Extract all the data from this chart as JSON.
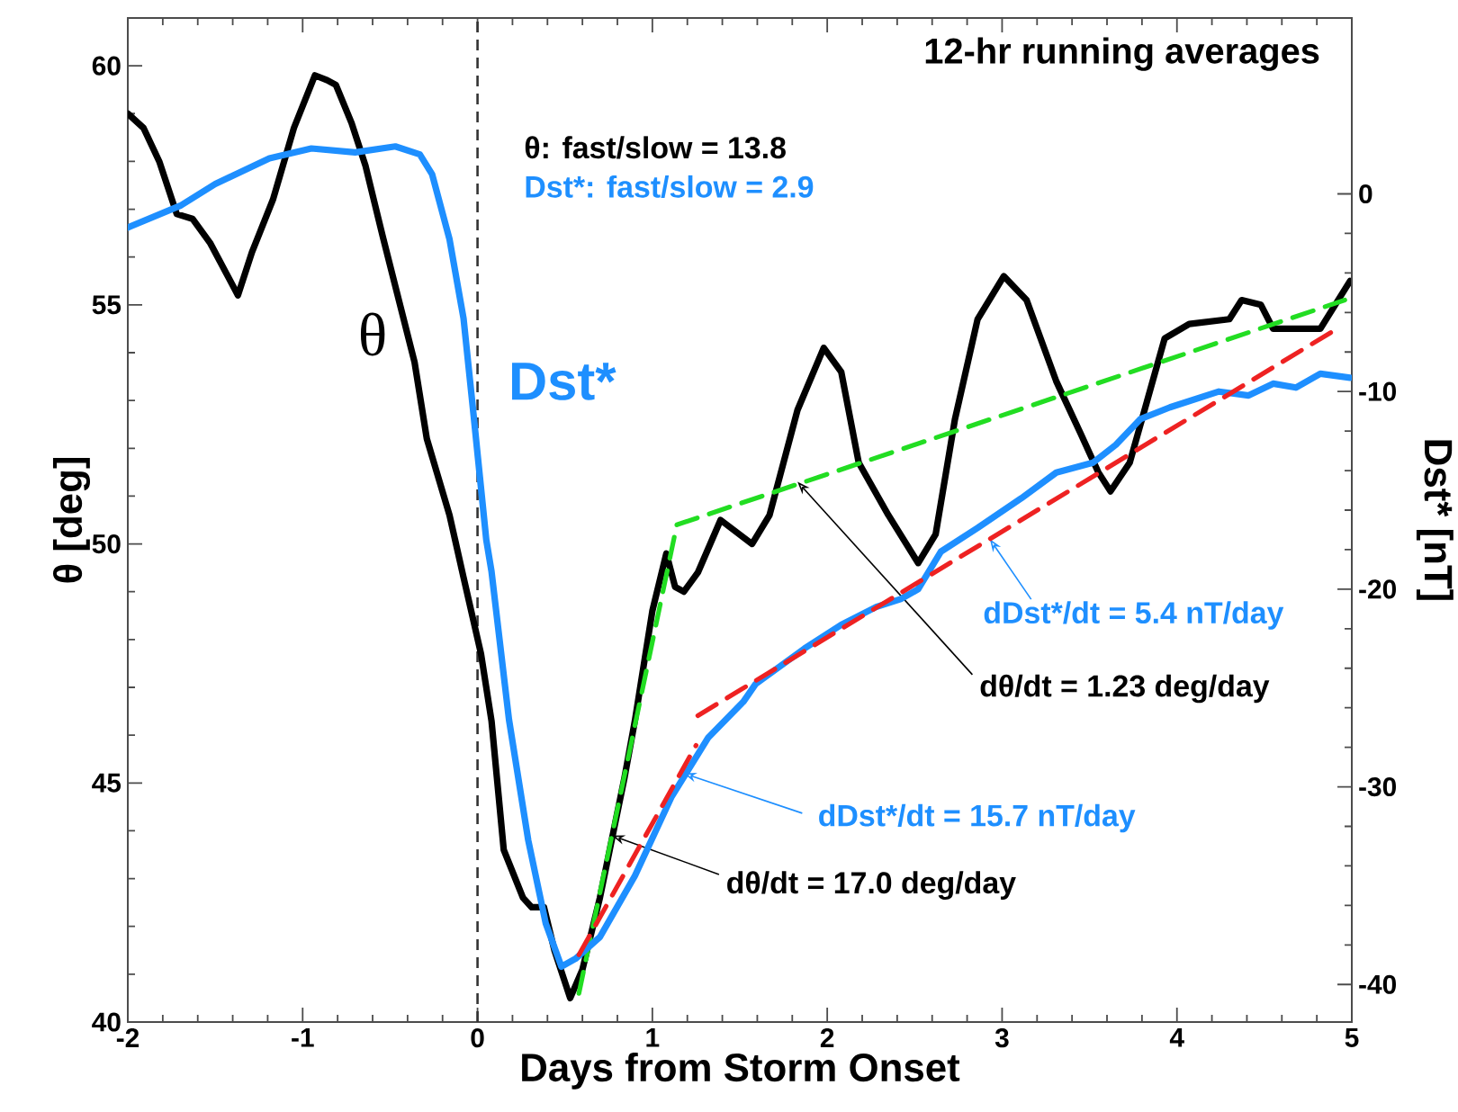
{
  "chart_data": {
    "type": "line",
    "xlabel": "Days from Storm Onset",
    "ylabel": "θ    [deg]",
    "y2label": "Dst*  [nT]",
    "xlim": [
      -2,
      5
    ],
    "xticks": [
      -2,
      -1,
      0,
      1,
      2,
      3,
      4,
      5
    ],
    "ylim": [
      40,
      61
    ],
    "yticks": [
      40,
      45,
      50,
      55,
      60
    ],
    "y2lim": [
      -41.9,
      8.9
    ],
    "y2ticks": [
      -40,
      -30,
      -20,
      -10,
      0
    ],
    "grid": false,
    "marker": "none",
    "line_style": "solid",
    "ref_lines": [
      {
        "axis": "x",
        "value": 0,
        "color": "#333333",
        "line_style": "dashed"
      }
    ],
    "annotations": [
      "12-hr running averages",
      "θ:  fast/slow = 13.8",
      "Dst*: fast/slow = 2.9",
      {
        "text": "dDst*/dt = 5.4 nT/day",
        "x": 2.93,
        "y": 50.1
      },
      {
        "text": "dθ/dt = 1.23 deg/day",
        "x": 1.83,
        "y": 51.3
      },
      {
        "text": "dDst*/dt = 15.7 nT/day",
        "x": 1.18,
        "y": 45.2
      },
      {
        "text": "dθ/dt = 17.0 deg/day",
        "x": 0.77,
        "y": 43.9
      }
    ],
    "series": [
      {
        "name": "θ",
        "color": "#000000",
        "x": [
          -2.0,
          -1.91,
          -1.82,
          -1.72,
          -1.63,
          -1.53,
          -1.37,
          -1.29,
          -1.17,
          -1.05,
          -0.93,
          -0.86,
          -0.81,
          -0.72,
          -0.64,
          -0.54,
          -0.36,
          -0.29,
          -0.16,
          -0.08,
          0.02,
          0.08,
          0.15,
          0.26,
          0.31,
          0.38,
          0.44,
          0.53,
          0.6,
          0.7,
          0.84,
          0.9,
          1.0,
          1.08,
          1.13,
          1.18,
          1.26,
          1.39,
          1.57,
          1.67,
          1.83,
          1.98,
          2.08,
          2.18,
          2.35,
          2.52,
          2.62,
          2.73,
          2.86,
          3.01,
          3.14,
          3.31,
          3.45,
          3.55,
          3.62,
          3.73,
          3.93,
          4.07,
          4.3,
          4.37,
          4.48,
          4.55,
          4.82,
          4.99
        ],
        "values": [
          59.0,
          58.7,
          58.0,
          56.9,
          56.8,
          56.3,
          55.2,
          56.1,
          57.2,
          58.7,
          59.8,
          59.7,
          59.6,
          58.8,
          57.9,
          56.4,
          53.8,
          52.2,
          50.6,
          49.3,
          47.7,
          46.3,
          43.6,
          42.6,
          42.4,
          42.4,
          41.5,
          40.5,
          41.1,
          42.6,
          45.1,
          46.3,
          48.6,
          49.8,
          49.1,
          49.0,
          49.4,
          50.5,
          50.0,
          50.6,
          52.8,
          54.1,
          53.6,
          51.7,
          50.6,
          49.6,
          50.2,
          52.6,
          54.7,
          55.6,
          55.1,
          53.4,
          52.3,
          51.5,
          51.1,
          51.7,
          54.3,
          54.6,
          54.7,
          55.1,
          55.0,
          54.5,
          54.5,
          55.5
        ]
      },
      {
        "name": "Dst*",
        "color": "#1e8fff",
        "axis": "y2",
        "x": [
          -2.0,
          -1.7,
          -1.5,
          -1.19,
          -0.95,
          -0.7,
          -0.47,
          -0.33,
          -0.26,
          -0.16,
          -0.08,
          -0.02,
          0.05,
          0.08,
          0.18,
          0.29,
          0.39,
          0.48,
          0.56,
          0.7,
          0.9,
          1.11,
          1.32,
          1.52,
          1.59,
          1.87,
          2.08,
          2.28,
          2.42,
          2.52,
          2.65,
          2.86,
          3.11,
          3.31,
          3.52,
          3.65,
          3.79,
          3.96,
          4.24,
          4.41,
          4.55,
          4.68,
          4.82,
          4.99
        ],
        "values": [
          -1.7,
          -0.6,
          0.5,
          1.8,
          2.3,
          2.1,
          2.4,
          2.0,
          1.0,
          -2.3,
          -6.3,
          -11.4,
          -17.5,
          -19.1,
          -26.6,
          -32.7,
          -36.9,
          -39.1,
          -38.7,
          -37.6,
          -34.5,
          -30.5,
          -27.5,
          -25.7,
          -24.8,
          -23.0,
          -21.8,
          -20.9,
          -20.5,
          -20.0,
          -18.1,
          -16.9,
          -15.4,
          -14.1,
          -13.6,
          -12.7,
          -11.4,
          -10.8,
          -10.0,
          -10.2,
          -9.6,
          -9.8,
          -9.1,
          -9.3
        ]
      },
      {
        "color": "#22dd22",
        "line_style": "dashed",
        "x": [
          0.58,
          1.14,
          4.96
        ],
        "values": [
          40.6,
          50.4,
          55.1
        ]
      },
      {
        "color": "#ee2222",
        "line_style": "dashed",
        "axis": "y2",
        "x": [
          0.58,
          1.25,
          1.255,
          1.26,
          4.92
        ],
        "values": [
          -38.5,
          -27.9,
          null,
          -26.4,
          -6.8
        ]
      }
    ]
  }
}
